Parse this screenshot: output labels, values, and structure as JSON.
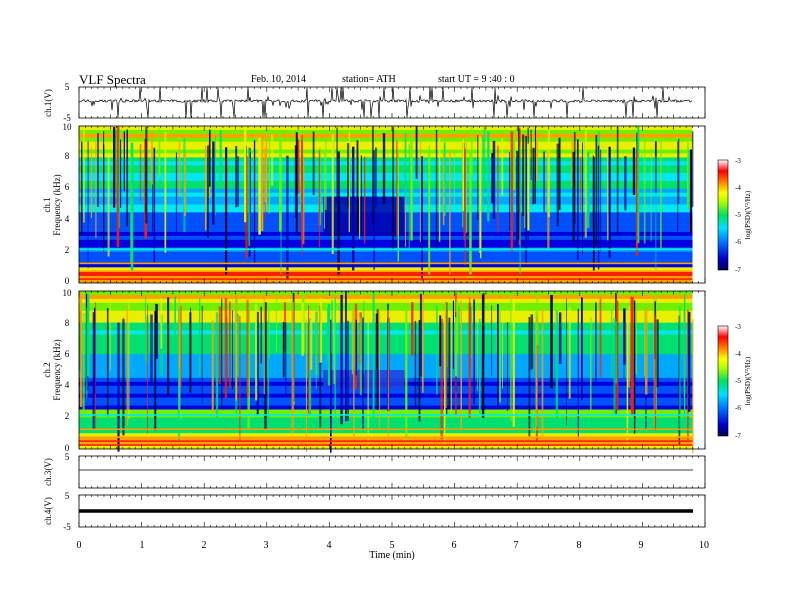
{
  "header": {
    "title": "VLF  Spectra",
    "date": "Feb. 10, 2014",
    "station": "station= ATH",
    "start": "start  UT  =   9  :40 : 0"
  },
  "chart_data": [
    {
      "type": "line",
      "panel": "ch1-waveform",
      "ylabel": "ch.1(V)",
      "ylim": [
        -5,
        5
      ],
      "yticks": [
        "5",
        "-5"
      ],
      "x_range": [
        0,
        9.8
      ],
      "level_description": "noisy trace near +1.5 V with frequent spikes"
    },
    {
      "type": "heatmap",
      "panel": "ch1-spectrogram",
      "ylabel": "ch.1",
      "ylabel2": "Frequency  (kHz)",
      "ylim": [
        0,
        10
      ],
      "yticks": [
        "0",
        "2",
        "4",
        "6",
        "8",
        "10"
      ],
      "colorbar": {
        "label": "log(PSD)(V²/Hz)",
        "ticks": [
          "-3",
          "-4",
          "-5",
          "-6",
          "-7"
        ],
        "range": [
          -7,
          -3
        ]
      },
      "colors": [
        "#000060",
        "#0000cc",
        "#0080ff",
        "#00e0ff",
        "#00e060",
        "#ffff00",
        "#ff8000",
        "#ff0000",
        "#ffffff"
      ]
    },
    {
      "type": "heatmap",
      "panel": "ch2-spectrogram",
      "ylabel": "ch.2",
      "ylabel2": "Frequency  (kHz)",
      "ylim": [
        0,
        10
      ],
      "yticks": [
        "0",
        "2",
        "4",
        "6",
        "8",
        "10"
      ],
      "colorbar": {
        "label": "log(PSD)(V²/Hz)",
        "ticks": [
          "-3",
          "-4",
          "-5",
          "-6",
          "-7"
        ],
        "range": [
          -7,
          -3
        ]
      }
    },
    {
      "type": "line",
      "panel": "ch3-waveform",
      "ylabel": "ch.3(V)",
      "ylim": [
        -5,
        5
      ],
      "yticks": [
        "5"
      ],
      "x_range": [
        0,
        9.8
      ],
      "values_constant": 0
    },
    {
      "type": "line",
      "panel": "ch4-waveform",
      "ylabel": "ch.4(V)",
      "ylim": [
        -5,
        5
      ],
      "yticks": [
        "5",
        "-5"
      ],
      "x_range": [
        0,
        9.8
      ],
      "values_constant": 0
    }
  ],
  "xaxis": {
    "label": "Time  (min)",
    "ticks": [
      "0",
      "1",
      "2",
      "3",
      "4",
      "5",
      "6",
      "7",
      "8",
      "9",
      "10"
    ],
    "xlim": [
      0,
      10
    ]
  }
}
